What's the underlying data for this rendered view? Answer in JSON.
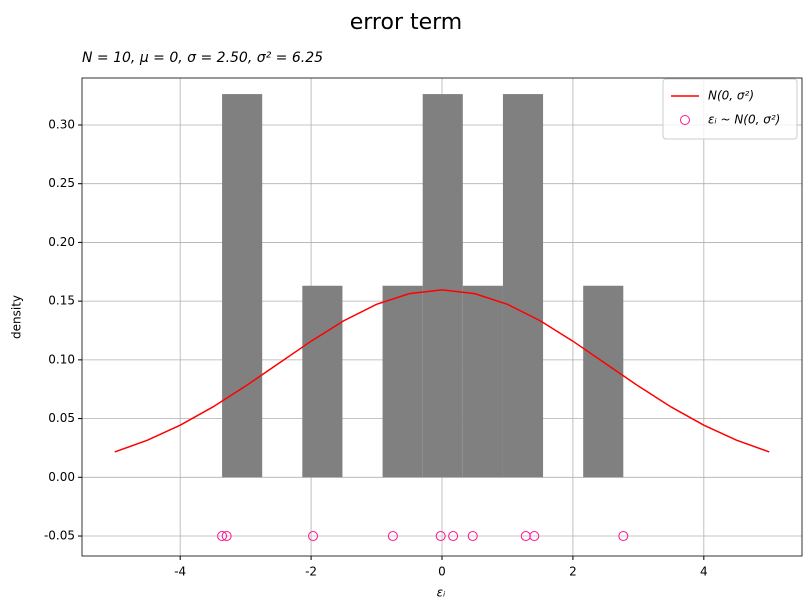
{
  "chart_data": {
    "type": "histogram",
    "title": "error term",
    "subtitle": "N = 10, μ = 0, σ = 2.50, σ² = 6.25",
    "x_label": "εᵢ",
    "y_label": "density",
    "bins": [
      -3.36,
      -2.747,
      -2.134,
      -1.521,
      -0.908,
      -0.295,
      0.318,
      0.931,
      1.544,
      2.157,
      2.77
    ],
    "values": [
      0.3263,
      0,
      0.1631,
      0,
      0.1631,
      0.3263,
      0.1631,
      0.3263,
      0,
      0.1631
    ],
    "color": "#808080",
    "series": [
      {
        "type": "line",
        "name": "N(0, σ²)",
        "color": "#ff0000",
        "x": [
          -5,
          -4.5,
          -4,
          -3.5,
          -3,
          -2.5,
          -2,
          -1.5,
          -1,
          -0.5,
          0,
          0.5,
          1,
          1.5,
          2,
          2.5,
          3,
          3.5,
          4,
          4.5,
          5
        ],
        "values": [
          0.0216,
          0.0316,
          0.0444,
          0.0599,
          0.0777,
          0.0968,
          0.1159,
          0.1333,
          0.1473,
          0.1564,
          0.1596,
          0.1564,
          0.1473,
          0.1333,
          0.1159,
          0.0968,
          0.0777,
          0.0599,
          0.0444,
          0.0316,
          0.0216
        ]
      },
      {
        "type": "scatter",
        "name": "εᵢ ~ N(0, σ²)",
        "color": "#ff1493",
        "x": [
          -3.36,
          -3.29,
          -1.97,
          -0.75,
          -0.02,
          0.17,
          0.47,
          1.28,
          1.41,
          2.77
        ],
        "values": [
          -0.05,
          -0.05,
          -0.05,
          -0.05,
          -0.05,
          -0.05,
          -0.05,
          -0.05,
          -0.05,
          -0.05
        ]
      }
    ],
    "xlim": [
      -5.5,
      5.5
    ],
    "ylim": [
      -0.067,
      0.34
    ],
    "xticks": [
      -4,
      -2,
      0,
      2,
      4
    ],
    "yticks": [
      -0.05,
      {
        "value": 0,
        "label": "0.00"
      },
      0.05,
      {
        "value": 0.1,
        "label": "0.10"
      },
      0.15,
      {
        "value": 0.2,
        "label": "0.20"
      },
      0.25,
      {
        "value": 0.3,
        "label": "0.30"
      }
    ],
    "grid": true,
    "legend": "upper right"
  }
}
